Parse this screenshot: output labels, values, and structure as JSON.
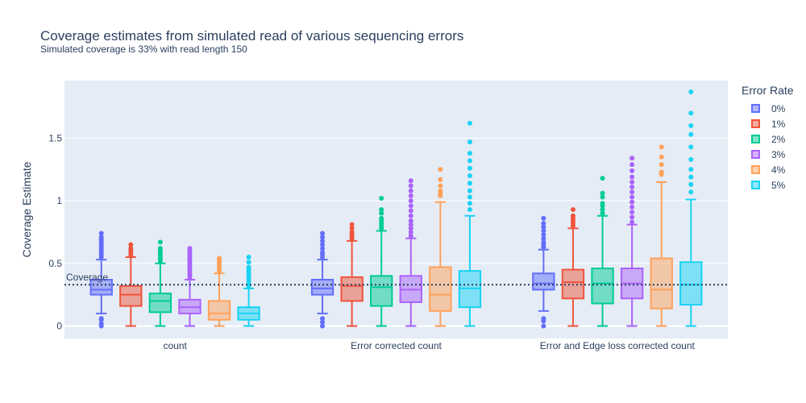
{
  "chart_data": {
    "type": "box",
    "title": "Coverage estimates from simulated read of various sequencing errors",
    "subtitle": "Simulated coverage is 33% with read length 150",
    "ylabel": "Coverage Estimate",
    "xlabel": "",
    "ylim": [
      -0.1,
      1.96
    ],
    "y_ticks": [
      {
        "value": 0,
        "label": "0"
      },
      {
        "value": 0.5,
        "label": "0.5"
      },
      {
        "value": 1,
        "label": "1"
      },
      {
        "value": 1.5,
        "label": "1.5"
      }
    ],
    "categories": [
      "count",
      "Error corrected count",
      "Error and Edge loss corrected count"
    ],
    "grid": true,
    "reference_line": {
      "value": 0.33,
      "label": "Coverage"
    },
    "legend_title": "Error Rate",
    "legend_position": "right",
    "series": [
      {
        "name": "0%",
        "color": "#636efa",
        "boxes": [
          {
            "lower": 0.1,
            "q1": 0.25,
            "median": 0.29,
            "q3": 0.37,
            "upper": 0.53,
            "outliers": [
              0.0,
              0.02,
              0.05,
              0.06,
              0.55,
              0.57,
              0.59,
              0.61,
              0.63,
              0.65,
              0.67,
              0.69,
              0.71,
              0.74
            ]
          },
          {
            "lower": 0.1,
            "q1": 0.25,
            "median": 0.3,
            "q3": 0.37,
            "upper": 0.53,
            "outliers": [
              0.0,
              0.03,
              0.06,
              0.55,
              0.57,
              0.59,
              0.62,
              0.65,
              0.68,
              0.71,
              0.74
            ]
          },
          {
            "lower": 0.12,
            "q1": 0.29,
            "median": 0.34,
            "q3": 0.42,
            "upper": 0.61,
            "outliers": [
              0.0,
              0.04,
              0.06,
              0.63,
              0.65,
              0.67,
              0.7,
              0.73,
              0.76,
              0.79,
              0.82,
              0.86
            ]
          }
        ]
      },
      {
        "name": "1%",
        "color": "#ef553b",
        "boxes": [
          {
            "lower": 0.0,
            "q1": 0.16,
            "median": 0.25,
            "q3": 0.32,
            "upper": 0.55,
            "outliers": [
              0.56,
              0.58,
              0.6,
              0.62,
              0.65
            ]
          },
          {
            "lower": 0.0,
            "q1": 0.2,
            "median": 0.32,
            "q3": 0.39,
            "upper": 0.68,
            "outliers": [
              0.69,
              0.71,
              0.73,
              0.75,
              0.78,
              0.81
            ]
          },
          {
            "lower": 0.0,
            "q1": 0.22,
            "median": 0.35,
            "q3": 0.45,
            "upper": 0.78,
            "outliers": [
              0.8,
              0.82,
              0.84,
              0.86,
              0.88,
              0.93
            ]
          }
        ]
      },
      {
        "name": "2%",
        "color": "#00cc96",
        "boxes": [
          {
            "lower": 0.0,
            "q1": 0.11,
            "median": 0.2,
            "q3": 0.26,
            "upper": 0.5,
            "outliers": [
              0.52,
              0.54,
              0.56,
              0.58,
              0.6,
              0.62,
              0.67
            ]
          },
          {
            "lower": 0.0,
            "q1": 0.16,
            "median": 0.31,
            "q3": 0.4,
            "upper": 0.76,
            "outliers": [
              0.78,
              0.8,
              0.82,
              0.84,
              0.86,
              0.9,
              0.93,
              1.02
            ]
          },
          {
            "lower": 0.0,
            "q1": 0.18,
            "median": 0.34,
            "q3": 0.46,
            "upper": 0.88,
            "outliers": [
              0.9,
              0.93,
              0.96,
              0.98,
              1.03,
              1.06,
              1.18
            ]
          }
        ]
      },
      {
        "name": "3%",
        "color": "#ab63fa",
        "boxes": [
          {
            "lower": 0.0,
            "q1": 0.1,
            "median": 0.15,
            "q3": 0.21,
            "upper": 0.37,
            "outliers": [
              0.38,
              0.4,
              0.42,
              0.44,
              0.46,
              0.48,
              0.5,
              0.52,
              0.54,
              0.56,
              0.58,
              0.6,
              0.62
            ]
          },
          {
            "lower": 0.0,
            "q1": 0.19,
            "median": 0.29,
            "q3": 0.4,
            "upper": 0.7,
            "outliers": [
              0.72,
              0.75,
              0.78,
              0.81,
              0.84,
              0.88,
              0.92,
              0.96,
              1.0,
              1.04,
              1.08,
              1.12,
              1.16
            ]
          },
          {
            "lower": 0.0,
            "q1": 0.22,
            "median": 0.34,
            "q3": 0.46,
            "upper": 0.81,
            "outliers": [
              0.83,
              0.87,
              0.91,
              0.95,
              0.99,
              1.03,
              1.07,
              1.11,
              1.15,
              1.19,
              1.24,
              1.29,
              1.34
            ]
          }
        ]
      },
      {
        "name": "4%",
        "color": "#ffa15a",
        "boxes": [
          {
            "lower": 0.0,
            "q1": 0.05,
            "median": 0.1,
            "q3": 0.2,
            "upper": 0.42,
            "outliers": [
              0.44,
              0.46,
              0.48,
              0.5,
              0.52,
              0.54
            ]
          },
          {
            "lower": 0.0,
            "q1": 0.12,
            "median": 0.25,
            "q3": 0.47,
            "upper": 0.99,
            "outliers": [
              1.04,
              1.06,
              1.08,
              1.12,
              1.17,
              1.25
            ]
          },
          {
            "lower": 0.0,
            "q1": 0.14,
            "median": 0.29,
            "q3": 0.54,
            "upper": 1.15,
            "outliers": [
              1.21,
              1.23,
              1.29,
              1.35,
              1.43
            ]
          }
        ]
      },
      {
        "name": "5%",
        "color": "#19d3f3",
        "boxes": [
          {
            "lower": 0.0,
            "q1": 0.05,
            "median": 0.1,
            "q3": 0.15,
            "upper": 0.3,
            "outliers": [
              0.31,
              0.33,
              0.35,
              0.37,
              0.39,
              0.41,
              0.43,
              0.45,
              0.47,
              0.51,
              0.55
            ]
          },
          {
            "lower": 0.0,
            "q1": 0.15,
            "median": 0.3,
            "q3": 0.44,
            "upper": 0.88,
            "outliers": [
              0.93,
              0.98,
              1.03,
              1.08,
              1.14,
              1.2,
              1.26,
              1.32,
              1.38,
              1.47,
              1.62
            ]
          },
          {
            "lower": 0.0,
            "q1": 0.17,
            "median": 0.33,
            "q3": 0.51,
            "upper": 1.01,
            "outliers": [
              1.07,
              1.13,
              1.19,
              1.25,
              1.33,
              1.43,
              1.53,
              1.6,
              1.7,
              1.87
            ]
          }
        ]
      }
    ]
  }
}
